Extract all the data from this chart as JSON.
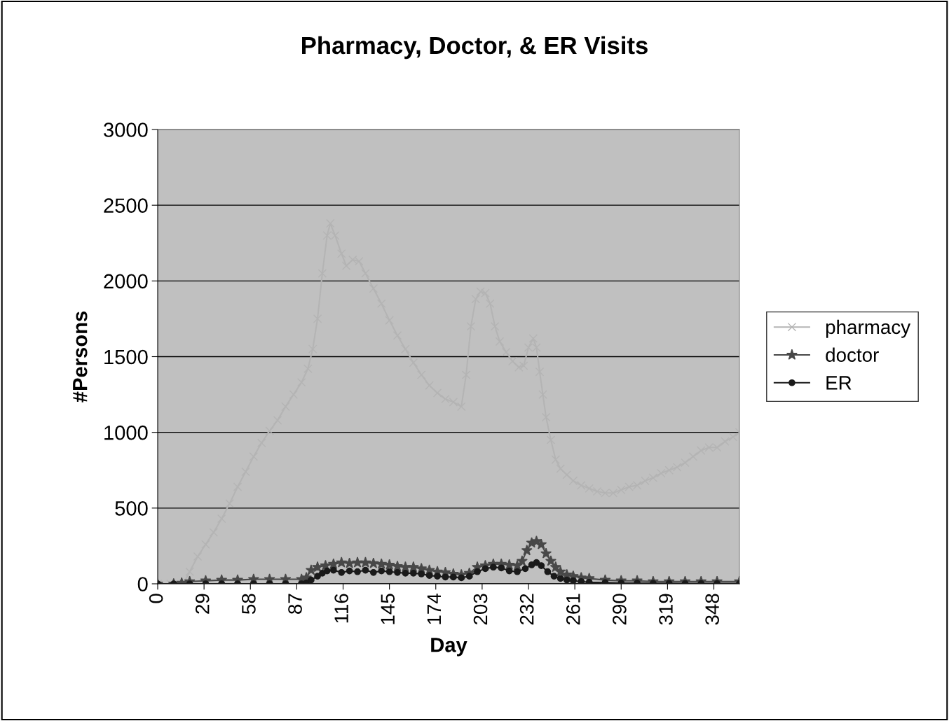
{
  "chart_data": {
    "type": "line",
    "title": "Pharmacy, Doctor, & ER Visits",
    "xlabel": "Day",
    "ylabel": "#Persons",
    "xlim": [
      0,
      364
    ],
    "xticks": [
      0,
      29,
      58,
      87,
      116,
      145,
      174,
      203,
      232,
      261,
      290,
      319,
      348
    ],
    "ylim": [
      0,
      3000
    ],
    "yticks": [
      0,
      500,
      1000,
      1500,
      2000,
      2500,
      3000
    ],
    "grid": "y",
    "legend": "right",
    "line_style": "solid",
    "series": [
      {
        "name": "pharmacy",
        "color": "#b4b4b4",
        "marker": "cross",
        "x": [
          0,
          8,
          16,
          20,
          25,
          30,
          35,
          40,
          45,
          50,
          55,
          60,
          65,
          70,
          75,
          80,
          85,
          90,
          94,
          97,
          100,
          103,
          106,
          108,
          111,
          115,
          118,
          122,
          126,
          130,
          135,
          140,
          145,
          150,
          155,
          160,
          165,
          170,
          175,
          180,
          185,
          190,
          193,
          196,
          199,
          202,
          205,
          208,
          211,
          214,
          218,
          222,
          226,
          229,
          232,
          235,
          237,
          239,
          241,
          243,
          246,
          249,
          252,
          256,
          260,
          265,
          270,
          275,
          280,
          285,
          290,
          295,
          300,
          305,
          310,
          315,
          320,
          325,
          330,
          335,
          340,
          345,
          350,
          355,
          360,
          364
        ],
        "values": [
          0,
          0,
          0,
          80,
          180,
          260,
          340,
          430,
          530,
          640,
          740,
          840,
          930,
          1010,
          1080,
          1170,
          1250,
          1330,
          1420,
          1550,
          1750,
          2050,
          2300,
          2380,
          2300,
          2180,
          2100,
          2140,
          2130,
          2050,
          1950,
          1850,
          1740,
          1640,
          1550,
          1460,
          1380,
          1310,
          1260,
          1220,
          1200,
          1170,
          1380,
          1700,
          1880,
          1930,
          1920,
          1850,
          1700,
          1600,
          1530,
          1470,
          1430,
          1440,
          1560,
          1620,
          1560,
          1400,
          1250,
          1100,
          950,
          820,
          760,
          720,
          680,
          650,
          630,
          610,
          600,
          600,
          620,
          640,
          650,
          680,
          700,
          730,
          750,
          770,
          800,
          840,
          880,
          900,
          900,
          940,
          970,
          1000
        ]
      },
      {
        "name": "doctor",
        "color": "#484848",
        "marker": "star",
        "x": [
          0,
          10,
          15,
          20,
          30,
          40,
          50,
          60,
          70,
          80,
          90,
          93,
          96,
          100,
          105,
          110,
          115,
          120,
          125,
          130,
          135,
          140,
          145,
          150,
          155,
          160,
          165,
          170,
          175,
          180,
          185,
          190,
          195,
          200,
          205,
          210,
          215,
          220,
          225,
          228,
          231,
          234,
          237,
          240,
          243,
          246,
          249,
          252,
          256,
          260,
          265,
          270,
          280,
          290,
          300,
          310,
          320,
          330,
          340,
          350,
          364
        ],
        "values": [
          0,
          0,
          5,
          15,
          20,
          25,
          25,
          30,
          30,
          30,
          30,
          40,
          90,
          110,
          120,
          130,
          140,
          135,
          140,
          140,
          135,
          130,
          125,
          115,
          110,
          110,
          100,
          90,
          80,
          75,
          65,
          60,
          70,
          110,
          120,
          130,
          130,
          125,
          120,
          150,
          220,
          270,
          280,
          260,
          200,
          150,
          110,
          80,
          60,
          50,
          40,
          35,
          25,
          20,
          20,
          15,
          15,
          15,
          15,
          15,
          15
        ]
      },
      {
        "name": "ER",
        "color": "#1a1a1a",
        "marker": "circle",
        "x": [
          0,
          10,
          20,
          30,
          40,
          50,
          60,
          70,
          80,
          90,
          93,
          96,
          100,
          103,
          106,
          110,
          115,
          120,
          125,
          130,
          135,
          140,
          145,
          150,
          155,
          160,
          165,
          170,
          175,
          180,
          185,
          190,
          195,
          200,
          205,
          210,
          215,
          220,
          225,
          230,
          234,
          237,
          240,
          244,
          248,
          252,
          256,
          260,
          265,
          270,
          280,
          290,
          300,
          310,
          320,
          330,
          340,
          350,
          364
        ],
        "values": [
          0,
          0,
          0,
          0,
          0,
          0,
          0,
          0,
          0,
          0,
          5,
          25,
          50,
          70,
          85,
          90,
          75,
          85,
          80,
          90,
          75,
          85,
          80,
          75,
          70,
          70,
          65,
          55,
          50,
          45,
          45,
          40,
          50,
          80,
          100,
          110,
          105,
          85,
          80,
          100,
          125,
          140,
          120,
          80,
          50,
          35,
          25,
          20,
          15,
          10,
          8,
          5,
          5,
          3,
          3,
          2,
          2,
          2,
          2
        ]
      }
    ]
  }
}
